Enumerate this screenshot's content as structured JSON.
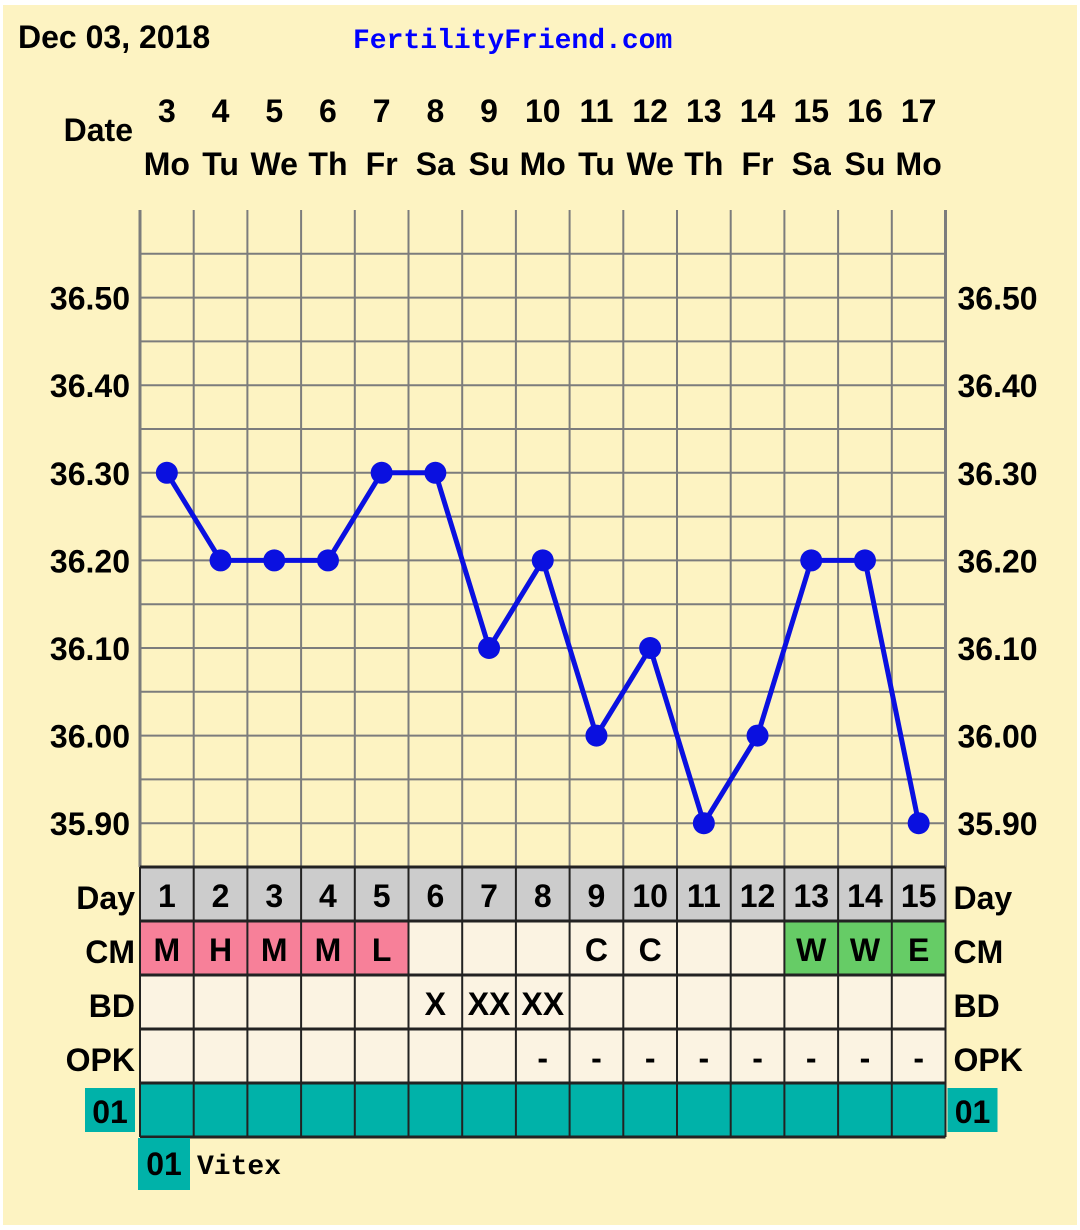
{
  "header": {
    "date": "Dec 03, 2018",
    "brand": "FertilityFriend.com",
    "date_label": "Date"
  },
  "colors": {
    "background": "#fdf3c2",
    "line": "#0a10e0",
    "menstrual": "#f78099",
    "fertile": "#66cc66",
    "teal": "#00b2a9",
    "day_row": "#cccccc",
    "cell": "#fbf3e2"
  },
  "chart_data": {
    "type": "line",
    "title": "",
    "xlabel": "Date",
    "ylabel": "",
    "dates": [
      "3",
      "4",
      "5",
      "6",
      "7",
      "8",
      "9",
      "10",
      "11",
      "12",
      "13",
      "14",
      "15",
      "16",
      "17"
    ],
    "weekdays": [
      "Mo",
      "Tu",
      "We",
      "Th",
      "Fr",
      "Sa",
      "Su",
      "Mo",
      "Tu",
      "We",
      "Th",
      "Fr",
      "Sa",
      "Su",
      "Mo"
    ],
    "cycle_days": [
      "1",
      "2",
      "3",
      "4",
      "5",
      "6",
      "7",
      "8",
      "9",
      "10",
      "11",
      "12",
      "13",
      "14",
      "15"
    ],
    "values": [
      36.3,
      36.2,
      36.2,
      36.2,
      36.3,
      36.3,
      36.1,
      36.2,
      36.0,
      36.1,
      35.9,
      36.0,
      36.2,
      36.2,
      35.9
    ],
    "ylim": [
      35.85,
      36.6
    ],
    "yticks": [
      "36.50",
      "36.40",
      "36.30",
      "36.20",
      "36.10",
      "36.00",
      "35.90"
    ],
    "grid": true
  },
  "rows": {
    "day": {
      "label": "Day"
    },
    "cm": {
      "label": "CM",
      "values": [
        "M",
        "H",
        "M",
        "M",
        "L",
        "",
        "",
        "",
        "C",
        "C",
        "",
        "",
        "W",
        "W",
        "E"
      ],
      "kinds": [
        "menstrual",
        "menstrual",
        "menstrual",
        "menstrual",
        "menstrual",
        "",
        "",
        "",
        "",
        "",
        "",
        "",
        "fertile",
        "fertile",
        "fertile"
      ]
    },
    "bd": {
      "label": "BD",
      "values": [
        "",
        "",
        "",
        "",
        "",
        "X",
        "XX",
        "XX",
        "",
        "",
        "",
        "",
        "",
        "",
        ""
      ]
    },
    "opk": {
      "label": "OPK",
      "values": [
        "",
        "",
        "",
        "",
        "",
        "",
        "",
        "-",
        "-",
        "-",
        "-",
        "-",
        "-",
        "-",
        "-"
      ]
    },
    "custom": {
      "label": "01"
    }
  },
  "legend": {
    "code": "01",
    "text": "Vitex"
  }
}
